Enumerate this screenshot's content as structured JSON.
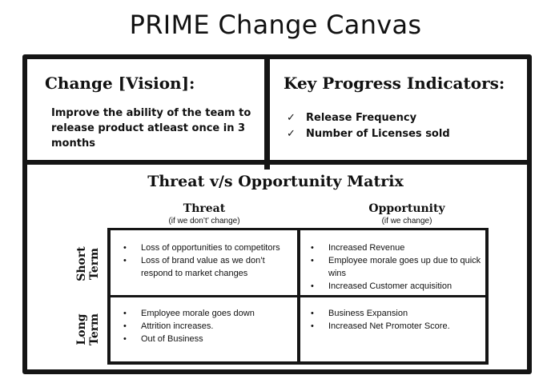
{
  "title": "PRIME Change Canvas",
  "vision": {
    "heading": "Change [Vision]:",
    "text": "Improve the ability of the team to release product atleast once in 3 months"
  },
  "kpi": {
    "heading": "Key Progress Indicators:",
    "check_symbol": "✓",
    "items": [
      "Release Frequency",
      "Number of Licenses sold"
    ]
  },
  "matrix": {
    "title": "Threat v/s Opportunity Matrix",
    "columns": [
      {
        "heading": "Threat",
        "sub": "(if we don’t’ change)"
      },
      {
        "heading": "Opportunity",
        "sub": "(if we change)"
      }
    ],
    "rows": [
      {
        "line1": "Short",
        "line2": "Term"
      },
      {
        "line1": "Long",
        "line2": "Term"
      }
    ],
    "cells": {
      "threat_short": [
        "Loss of opportunities to competitors",
        "Loss of brand value as we don’t respond to market changes"
      ],
      "opportunity_short": [
        "Increased Revenue",
        "Employee morale goes up due to quick wins",
        "Increased Customer acquisition"
      ],
      "threat_long": [
        "Employee morale goes down",
        "Attrition increases.",
        "Out of Business"
      ],
      "opportunity_long": [
        "Business Expansion",
        "Increased Net Promoter Score."
      ]
    }
  }
}
